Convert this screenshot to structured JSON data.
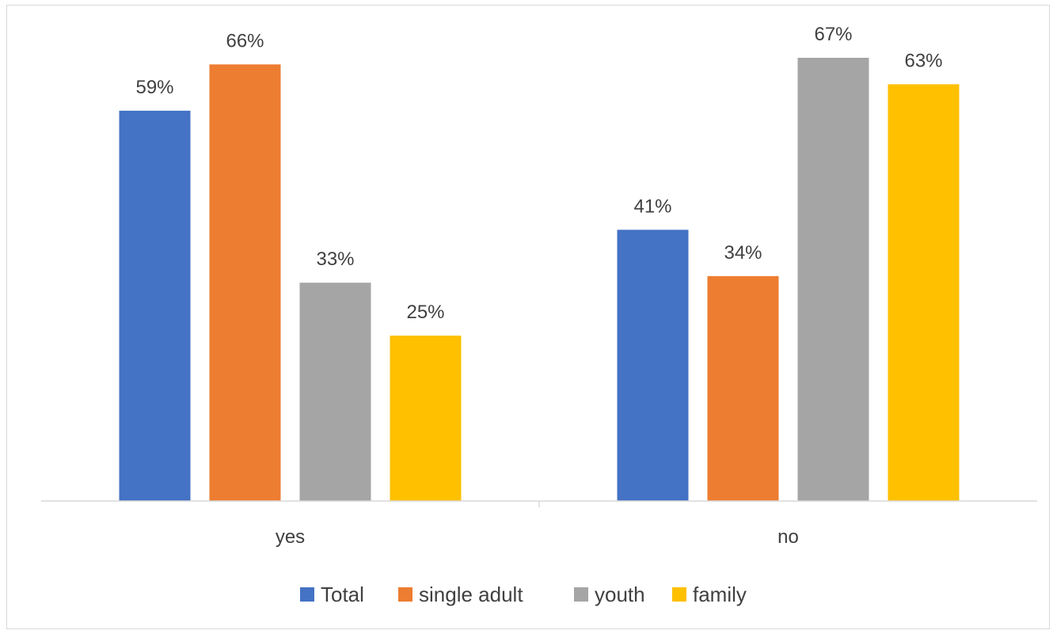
{
  "chart_data": {
    "type": "bar",
    "categories": [
      "yes",
      "no"
    ],
    "series": [
      {
        "name": "Total",
        "values": [
          59,
          41
        ],
        "color": "#4472C4"
      },
      {
        "name": "single adult",
        "values": [
          66,
          34
        ],
        "color": "#ED7D31"
      },
      {
        "name": "youth",
        "values": [
          33,
          67
        ],
        "color": "#A5A5A5"
      },
      {
        "name": "family",
        "values": [
          25,
          63
        ],
        "color": "#FFC000"
      }
    ],
    "value_suffix": "%",
    "ylim": [
      0,
      67
    ],
    "grid": false,
    "legend_position": "bottom",
    "axis_color": "#d9d9d9"
  }
}
